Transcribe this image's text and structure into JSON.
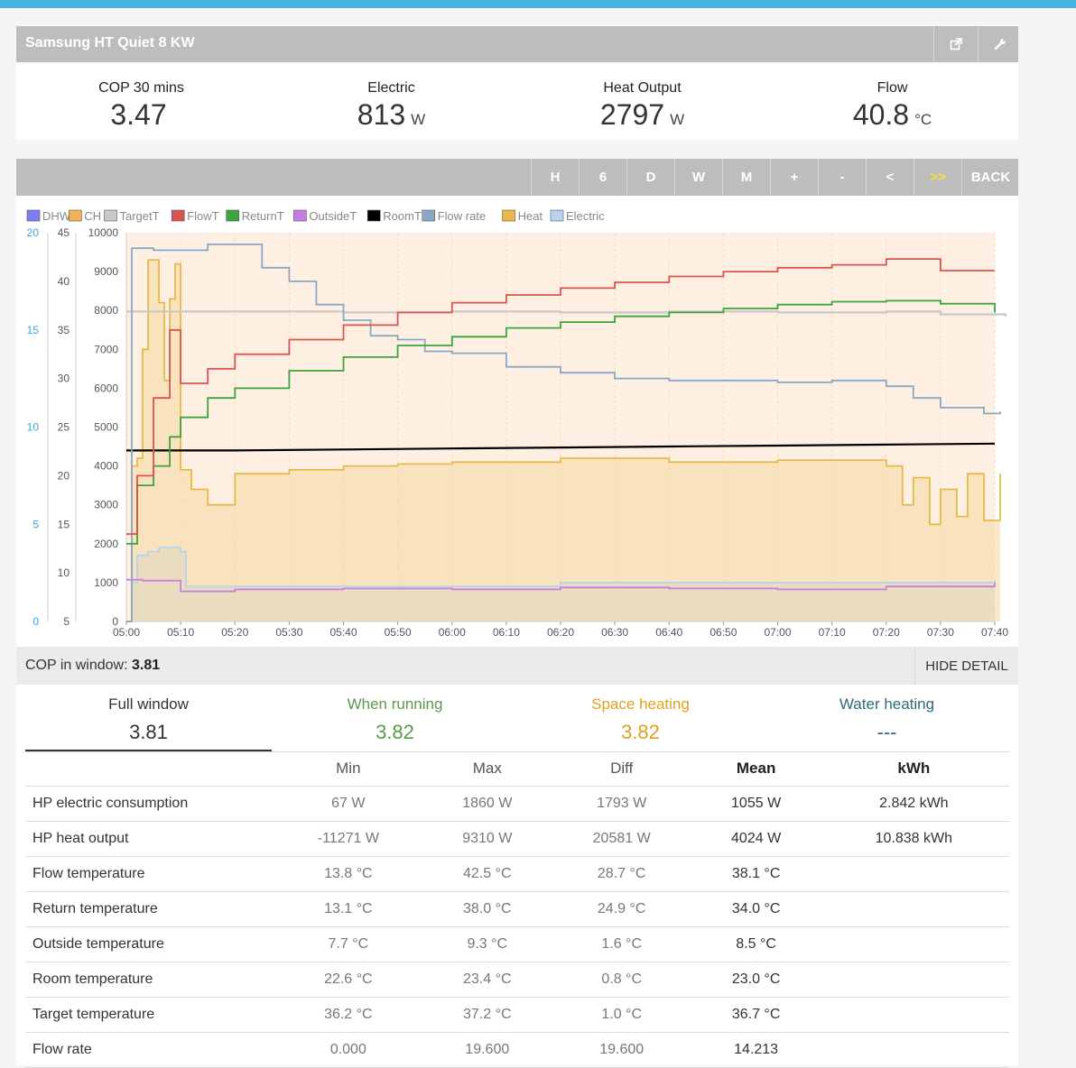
{
  "app": {
    "title": "Samsung HT Quiet 8 KW",
    "accent": "#44b3e2",
    "icons": [
      "external-link-icon",
      "wrench-icon"
    ]
  },
  "stats": [
    {
      "label": "COP 30 mins",
      "value": "3.47",
      "unit": ""
    },
    {
      "label": "Electric",
      "value": "813",
      "unit": "W"
    },
    {
      "label": "Heat Output",
      "value": "2797",
      "unit": "W"
    },
    {
      "label": "Flow",
      "value": "40.8",
      "unit": "°C"
    }
  ],
  "range_buttons": [
    "H",
    "6",
    "D",
    "W",
    "M",
    "+",
    "-",
    "<",
    ">>",
    "BACK"
  ],
  "chart_data": {
    "type": "line",
    "legend": [
      "DHW",
      "CH",
      "TargetT",
      "FlowT",
      "ReturnT",
      "OutsideT",
      "RoomT",
      "Flow rate",
      "Heat",
      "Electric"
    ],
    "legend_colors": [
      "#7c7cf5",
      "#f5b254",
      "#c8c8c8",
      "#d9534f",
      "#3da33d",
      "#c77de6",
      "#000000",
      "#8aa8c6",
      "#e8b94a",
      "#b7d3ef"
    ],
    "x_ticks": [
      "05:00",
      "05:10",
      "05:20",
      "05:30",
      "05:40",
      "05:50",
      "06:00",
      "06:10",
      "06:20",
      "06:30",
      "06:40",
      "06:50",
      "07:00",
      "07:10",
      "07:20",
      "07:30",
      "07:40"
    ],
    "axes": {
      "flow_rate": {
        "ticks": [
          0,
          5,
          10,
          15,
          20
        ],
        "range": [
          0,
          20
        ]
      },
      "temperature": {
        "ticks": [
          5,
          10,
          15,
          20,
          25,
          30,
          35,
          40,
          45
        ],
        "range": [
          5,
          45
        ]
      },
      "power": {
        "ticks": [
          0,
          1000,
          2000,
          3000,
          4000,
          5000,
          6000,
          7000,
          8000,
          9000,
          10000
        ],
        "range": [
          0,
          10000
        ]
      }
    },
    "series": [
      {
        "name": "FlowT",
        "axis": "temperature",
        "x_min": [
          0,
          2,
          5,
          8,
          10,
          15,
          20,
          30,
          40,
          50,
          60,
          70,
          80,
          90,
          100,
          110,
          120,
          130,
          140,
          150,
          160
        ],
        "values": [
          14,
          20,
          28,
          35,
          29.5,
          31,
          32.5,
          34,
          35.5,
          36.8,
          37.8,
          38.6,
          39.3,
          39.9,
          40.5,
          41,
          41.4,
          41.7,
          42.3,
          41.1,
          41.1
        ]
      },
      {
        "name": "ReturnT",
        "axis": "temperature",
        "x_min": [
          0,
          2,
          5,
          8,
          10,
          15,
          20,
          30,
          40,
          50,
          60,
          70,
          80,
          90,
          100,
          110,
          120,
          130,
          140,
          150,
          160
        ],
        "values": [
          13,
          19,
          21,
          24,
          26,
          28,
          29,
          30.8,
          32.2,
          33.4,
          34.3,
          35.2,
          35.8,
          36.4,
          36.8,
          37.2,
          37.6,
          37.9,
          38,
          37.7,
          36.8
        ]
      },
      {
        "name": "TargetT",
        "axis": "temperature",
        "x_min": [
          0,
          20,
          40,
          60,
          80,
          100,
          120,
          140,
          150,
          162
        ],
        "values": [
          36.9,
          36.9,
          36.8,
          36.9,
          36.8,
          36.9,
          36.8,
          36.9,
          36.6,
          36.4
        ]
      },
      {
        "name": "RoomT",
        "axis": "temperature",
        "x_min": [
          0,
          20,
          40,
          60,
          80,
          100,
          120,
          140,
          160
        ],
        "values": [
          22.6,
          22.6,
          22.7,
          22.8,
          22.9,
          23.0,
          23.1,
          23.2,
          23.3
        ]
      },
      {
        "name": "OutsideT",
        "axis": "temperature",
        "x_min": [
          0,
          3,
          10,
          20,
          40,
          60,
          80,
          100,
          120,
          140,
          160
        ],
        "values": [
          9.3,
          9.2,
          8.1,
          8.3,
          8.4,
          8.3,
          8.5,
          8.4,
          8.3,
          8.6,
          9
        ]
      },
      {
        "name": "Flow rate",
        "axis": "flow_rate",
        "x_min": [
          0,
          1,
          5,
          15,
          25,
          30,
          35,
          40,
          45,
          50,
          55,
          60,
          70,
          80,
          90,
          100,
          110,
          120,
          130,
          140,
          145,
          150,
          158,
          161
        ],
        "values": [
          0,
          19.2,
          19.1,
          19.4,
          18.2,
          17.5,
          16.3,
          15.5,
          14.7,
          14.5,
          13.9,
          13.8,
          13.1,
          12.8,
          12.5,
          12.4,
          12.4,
          12.3,
          12.4,
          12.1,
          11.5,
          11.0,
          10.7,
          10.8
        ]
      },
      {
        "name": "Heat",
        "axis": "power",
        "x_min": [
          0,
          1,
          2,
          3,
          4,
          5,
          6,
          7,
          8,
          9,
          10,
          12,
          15,
          20,
          30,
          40,
          50,
          60,
          80,
          100,
          120,
          140,
          143,
          145,
          148,
          150,
          153,
          155,
          158,
          161
        ],
        "values": [
          0,
          4000,
          4200,
          7000,
          9300,
          9300,
          8200,
          6200,
          8300,
          9200,
          3900,
          3400,
          3000,
          3800,
          3900,
          4000,
          4050,
          4100,
          4200,
          4100,
          4150,
          4000,
          3000,
          3700,
          2500,
          3400,
          2700,
          3800,
          2600,
          3800
        ]
      },
      {
        "name": "Electric",
        "axis": "power",
        "x_min": [
          0,
          1,
          2,
          4,
          6,
          10,
          11,
          40,
          80,
          120,
          140,
          160
        ],
        "values": [
          0,
          1000,
          1700,
          1800,
          1900,
          1800,
          900,
          900,
          1000,
          1000,
          1000,
          1050
        ]
      }
    ]
  },
  "cop_window": {
    "label": "COP in window:",
    "value": "3.81",
    "hide_label": "HIDE DETAIL"
  },
  "tabs": [
    {
      "label": "Full window",
      "value": "3.81",
      "color": "#333333"
    },
    {
      "label": "When running",
      "value": "3.82",
      "color": "#5a9a4a"
    },
    {
      "label": "Space heating",
      "value": "3.82",
      "color": "#e0a020"
    },
    {
      "label": "Water heating",
      "value": "---",
      "color": "#2e6a7a"
    }
  ],
  "table": {
    "headers": [
      "",
      "Min",
      "Max",
      "Diff",
      "Mean",
      "kWh"
    ],
    "rows": [
      [
        "HP electric consumption",
        "67 W",
        "1860 W",
        "1793 W",
        "1055 W",
        "2.842 kWh"
      ],
      [
        "HP heat output",
        "-11271 W",
        "9310 W",
        "20581 W",
        "4024 W",
        "10.838 kWh"
      ],
      [
        "Flow temperature",
        "13.8 °C",
        "42.5 °C",
        "28.7 °C",
        "38.1 °C",
        ""
      ],
      [
        "Return temperature",
        "13.1 °C",
        "38.0 °C",
        "24.9 °C",
        "34.0 °C",
        ""
      ],
      [
        "Outside temperature",
        "7.7 °C",
        "9.3 °C",
        "1.6 °C",
        "8.5 °C",
        ""
      ],
      [
        "Room temperature",
        "22.6 °C",
        "23.4 °C",
        "0.8 °C",
        "23.0 °C",
        ""
      ],
      [
        "Target temperature",
        "36.2 °C",
        "37.2 °C",
        "1.0 °C",
        "36.7 °C",
        ""
      ],
      [
        "Flow rate",
        "0.000",
        "19.600",
        "19.600",
        "14.213",
        ""
      ]
    ]
  }
}
